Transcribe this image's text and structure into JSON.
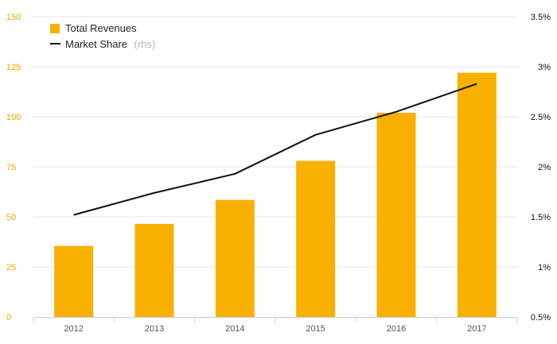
{
  "chart_data": {
    "type": "bar",
    "categories": [
      "2012",
      "2013",
      "2014",
      "2015",
      "2016",
      "2017"
    ],
    "series": [
      {
        "name": "Total Revenues",
        "type": "bar",
        "axis": "left",
        "values": [
          35.5,
          46.5,
          58.5,
          78,
          102,
          122
        ]
      },
      {
        "name": "Market Share",
        "type": "line",
        "axis": "right",
        "values": [
          1.52,
          1.74,
          1.93,
          2.32,
          2.55,
          2.83
        ]
      }
    ],
    "ylim": [
      0,
      150
    ],
    "ylim_right": [
      0.5,
      3.5
    ],
    "y_ticks": [
      "0",
      "25",
      "50",
      "75",
      "100",
      "125",
      "150"
    ],
    "y_right_ticks": [
      "0.5%",
      "1%",
      "1.5%",
      "2%",
      "2.5%",
      "3%",
      "3.5%"
    ],
    "legend": {
      "position": "top-left",
      "items": [
        {
          "label": "Total Revenues",
          "marker": "square"
        },
        {
          "label": "Market Share",
          "suffix": "(rhs)",
          "marker": "line"
        }
      ]
    },
    "grid": true,
    "colors": {
      "bar": "#f9b000",
      "line": "#111111",
      "grid": "#e6e6e6",
      "left_axis_text": "#f5a800",
      "x_axis_line": "#c9cde6"
    }
  }
}
